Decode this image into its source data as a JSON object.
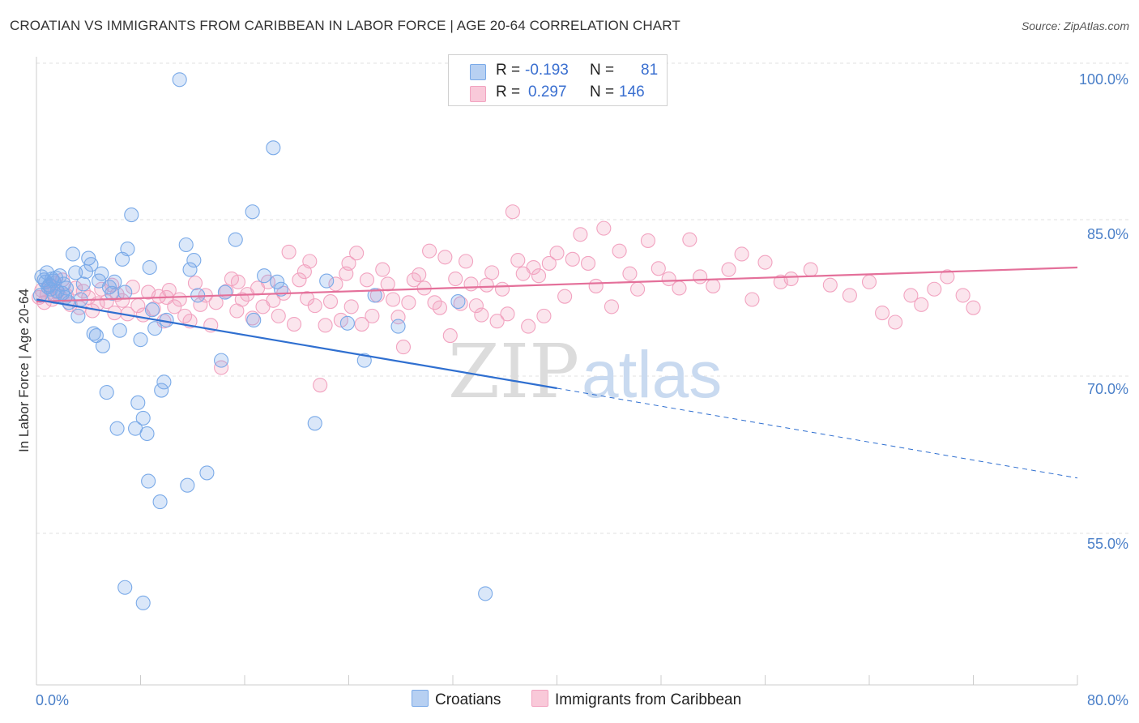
{
  "header": {
    "title": "CROATIAN VS IMMIGRANTS FROM CARIBBEAN IN LABOR FORCE | AGE 20-64 CORRELATION CHART",
    "source": "Source: ZipAtlas.com"
  },
  "legend": {
    "rows": [
      {
        "r_label": "R =",
        "r_value": "-0.193",
        "n_label": "N =",
        "n_value": "81"
      },
      {
        "r_label": "R =",
        "r_value": "0.297",
        "n_label": "N =",
        "n_value": "146"
      }
    ]
  },
  "bottom_legend": {
    "items": [
      {
        "label": "Croatians"
      },
      {
        "label": "Immigrants from Caribbean"
      }
    ]
  },
  "watermark": {
    "zip": "ZIP",
    "atlas": "atlas"
  },
  "chart_data": {
    "type": "scatter",
    "title": "CROATIAN VS IMMIGRANTS FROM CARIBBEAN IN LABOR FORCE | AGE 20-64 CORRELATION CHART",
    "xlabel": "",
    "ylabel": "In Labor Force | Age 20-64",
    "xlim": [
      0,
      80
    ],
    "ylim": [
      40,
      102
    ],
    "x_tick_labels": [
      "0.0%",
      "80.0%"
    ],
    "y_ticks": [
      {
        "value": 55,
        "label": "55.0%"
      },
      {
        "value": 70,
        "label": "70.0%"
      },
      {
        "value": 85,
        "label": "85.0%"
      },
      {
        "value": 100,
        "label": "100.0%"
      }
    ],
    "grid": "horizontal dashed",
    "colors": {
      "croatians": "#7aaae8",
      "caribbean": "#f2a3c0",
      "croatians_line": "#2f6fd0",
      "caribbean_line": "#e4709a",
      "tick_text": "#4a7fc8"
    },
    "series": [
      {
        "name": "Croatians",
        "trend": {
          "x0": 0,
          "y0": 78.6,
          "x1": 40,
          "y1": 70.0,
          "dashed_to_x": 80,
          "dashed_to_y": 61.3
        },
        "points": [
          [
            0.3,
            79.0
          ],
          [
            0.4,
            80.8
          ],
          [
            0.6,
            80.5
          ],
          [
            0.7,
            80.3
          ],
          [
            0.8,
            81.2
          ],
          [
            0.9,
            79.8
          ],
          [
            1.0,
            80.0
          ],
          [
            1.1,
            79.6
          ],
          [
            1.2,
            80.6
          ],
          [
            1.3,
            80.4
          ],
          [
            1.4,
            78.9
          ],
          [
            1.5,
            80.7
          ],
          [
            1.6,
            79.4
          ],
          [
            1.8,
            80.9
          ],
          [
            2.0,
            79.2
          ],
          [
            2.1,
            80.1
          ],
          [
            2.3,
            79.7
          ],
          [
            2.5,
            78.3
          ],
          [
            2.8,
            83.0
          ],
          [
            3.0,
            81.2
          ],
          [
            3.2,
            77.0
          ],
          [
            3.4,
            78.6
          ],
          [
            3.6,
            80.1
          ],
          [
            3.8,
            81.3
          ],
          [
            4.0,
            82.6
          ],
          [
            4.2,
            82.0
          ],
          [
            4.4,
            75.3
          ],
          [
            4.6,
            75.1
          ],
          [
            4.8,
            80.4
          ],
          [
            5.0,
            81.1
          ],
          [
            5.1,
            74.1
          ],
          [
            5.4,
            69.6
          ],
          [
            5.6,
            79.8
          ],
          [
            5.8,
            79.2
          ],
          [
            6.0,
            80.3
          ],
          [
            6.2,
            66.1
          ],
          [
            6.4,
            75.6
          ],
          [
            6.6,
            82.5
          ],
          [
            6.8,
            79.3
          ],
          [
            7.0,
            83.5
          ],
          [
            7.3,
            86.8
          ],
          [
            7.6,
            66.1
          ],
          [
            7.8,
            68.6
          ],
          [
            8.0,
            74.7
          ],
          [
            8.2,
            67.1
          ],
          [
            8.5,
            65.6
          ],
          [
            8.6,
            61.0
          ],
          [
            8.7,
            81.7
          ],
          [
            8.9,
            77.6
          ],
          [
            9.1,
            75.8
          ],
          [
            9.5,
            59.0
          ],
          [
            9.6,
            69.8
          ],
          [
            9.8,
            70.6
          ],
          [
            10.0,
            76.6
          ],
          [
            11.0,
            99.9
          ],
          [
            11.5,
            83.9
          ],
          [
            11.6,
            60.6
          ],
          [
            11.8,
            81.5
          ],
          [
            12.1,
            82.4
          ],
          [
            12.4,
            79.0
          ],
          [
            13.1,
            61.8
          ],
          [
            14.2,
            72.7
          ],
          [
            14.5,
            79.3
          ],
          [
            15.3,
            84.4
          ],
          [
            16.6,
            87.1
          ],
          [
            16.7,
            76.6
          ],
          [
            17.5,
            80.9
          ],
          [
            18.2,
            93.3
          ],
          [
            18.5,
            80.3
          ],
          [
            18.8,
            79.6
          ],
          [
            21.4,
            66.6
          ],
          [
            22.3,
            80.4
          ],
          [
            23.9,
            76.3
          ],
          [
            25.2,
            72.7
          ],
          [
            26.0,
            79.0
          ],
          [
            27.8,
            76.0
          ],
          [
            32.4,
            78.4
          ],
          [
            34.5,
            50.1
          ],
          [
            6.8,
            50.7
          ],
          [
            8.2,
            49.2
          ],
          [
            2.2,
            78.8
          ]
        ]
      },
      {
        "name": "Immigrants from Caribbean",
        "trend": {
          "x0": 0,
          "y0": 78.4,
          "x1": 80,
          "y1": 81.7
        },
        "points": [
          [
            0.2,
            78.8
          ],
          [
            0.4,
            79.5
          ],
          [
            0.6,
            78.3
          ],
          [
            0.8,
            79.1
          ],
          [
            1.0,
            79.9
          ],
          [
            1.2,
            78.6
          ],
          [
            1.4,
            80.2
          ],
          [
            1.6,
            79.3
          ],
          [
            1.8,
            78.9
          ],
          [
            2.0,
            80.5
          ],
          [
            2.3,
            79.0
          ],
          [
            2.6,
            78.1
          ],
          [
            3.0,
            79.7
          ],
          [
            3.3,
            77.8
          ],
          [
            3.6,
            79.4
          ],
          [
            4.0,
            78.8
          ],
          [
            4.3,
            77.5
          ],
          [
            4.7,
            78.2
          ],
          [
            5.0,
            79.6
          ],
          [
            5.4,
            78.4
          ],
          [
            5.8,
            80.0
          ],
          [
            6.2,
            79.1
          ],
          [
            6.6,
            78.5
          ],
          [
            7.0,
            77.2
          ],
          [
            7.4,
            79.8
          ],
          [
            7.8,
            78.0
          ],
          [
            8.2,
            77.1
          ],
          [
            8.6,
            79.3
          ],
          [
            9.0,
            77.7
          ],
          [
            9.4,
            78.9
          ],
          [
            9.8,
            76.5
          ],
          [
            10.2,
            79.5
          ],
          [
            10.6,
            77.9
          ],
          [
            11.0,
            78.6
          ],
          [
            11.4,
            77.0
          ],
          [
            11.8,
            76.5
          ],
          [
            12.2,
            80.2
          ],
          [
            12.6,
            78.1
          ],
          [
            13.0,
            79.0
          ],
          [
            13.4,
            76.1
          ],
          [
            13.8,
            78.3
          ],
          [
            14.2,
            72.0
          ],
          [
            14.6,
            79.4
          ],
          [
            15.0,
            80.6
          ],
          [
            15.4,
            77.5
          ],
          [
            15.8,
            78.6
          ],
          [
            16.2,
            79.1
          ],
          [
            16.6,
            76.8
          ],
          [
            17.0,
            79.7
          ],
          [
            17.4,
            77.9
          ],
          [
            17.8,
            80.3
          ],
          [
            18.2,
            78.5
          ],
          [
            18.6,
            77.0
          ],
          [
            19.0,
            79.2
          ],
          [
            19.4,
            83.2
          ],
          [
            19.8,
            76.2
          ],
          [
            20.2,
            80.5
          ],
          [
            20.6,
            81.3
          ],
          [
            21.0,
            82.3
          ],
          [
            21.4,
            78.0
          ],
          [
            21.8,
            70.3
          ],
          [
            22.2,
            76.1
          ],
          [
            22.6,
            78.4
          ],
          [
            23.0,
            80.1
          ],
          [
            23.4,
            76.6
          ],
          [
            23.8,
            81.1
          ],
          [
            24.2,
            77.9
          ],
          [
            24.6,
            83.1
          ],
          [
            25.0,
            76.2
          ],
          [
            25.4,
            80.5
          ],
          [
            25.8,
            77.0
          ],
          [
            26.2,
            79.0
          ],
          [
            26.6,
            81.5
          ],
          [
            27.0,
            80.1
          ],
          [
            27.4,
            78.6
          ],
          [
            27.8,
            76.9
          ],
          [
            28.2,
            74.0
          ],
          [
            28.6,
            78.3
          ],
          [
            29.0,
            80.5
          ],
          [
            29.4,
            81.0
          ],
          [
            29.8,
            79.7
          ],
          [
            30.2,
            83.3
          ],
          [
            30.6,
            78.3
          ],
          [
            31.0,
            77.8
          ],
          [
            31.4,
            82.7
          ],
          [
            31.8,
            75.1
          ],
          [
            32.2,
            80.6
          ],
          [
            32.6,
            78.2
          ],
          [
            33.0,
            82.3
          ],
          [
            33.4,
            80.1
          ],
          [
            33.8,
            78.0
          ],
          [
            34.2,
            77.1
          ],
          [
            34.6,
            80.0
          ],
          [
            35.0,
            81.2
          ],
          [
            35.4,
            76.5
          ],
          [
            35.8,
            79.6
          ],
          [
            36.2,
            77.2
          ],
          [
            36.6,
            87.1
          ],
          [
            37.0,
            82.4
          ],
          [
            37.4,
            81.1
          ],
          [
            37.8,
            76.0
          ],
          [
            38.2,
            81.7
          ],
          [
            38.6,
            80.9
          ],
          [
            39.0,
            77.0
          ],
          [
            39.4,
            82.1
          ],
          [
            40.0,
            83.1
          ],
          [
            40.6,
            78.9
          ],
          [
            41.2,
            82.5
          ],
          [
            41.8,
            84.9
          ],
          [
            42.4,
            82.1
          ],
          [
            43.0,
            79.9
          ],
          [
            43.6,
            85.5
          ],
          [
            44.2,
            77.9
          ],
          [
            44.8,
            83.3
          ],
          [
            45.6,
            81.1
          ],
          [
            46.2,
            79.6
          ],
          [
            47.0,
            84.3
          ],
          [
            47.8,
            81.6
          ],
          [
            48.6,
            80.6
          ],
          [
            49.4,
            79.7
          ],
          [
            50.2,
            84.4
          ],
          [
            51.0,
            80.8
          ],
          [
            52.0,
            79.9
          ],
          [
            53.2,
            81.5
          ],
          [
            54.2,
            83.0
          ],
          [
            55.0,
            78.6
          ],
          [
            56.0,
            82.2
          ],
          [
            57.2,
            80.3
          ],
          [
            58.0,
            80.6
          ],
          [
            59.5,
            81.5
          ],
          [
            61.0,
            80.0
          ],
          [
            62.5,
            79.0
          ],
          [
            64.0,
            80.3
          ],
          [
            65.0,
            77.3
          ],
          [
            66.0,
            76.4
          ],
          [
            67.2,
            79.0
          ],
          [
            68.0,
            78.1
          ],
          [
            69.0,
            79.6
          ],
          [
            70.0,
            80.8
          ],
          [
            71.2,
            79.0
          ],
          [
            72.0,
            77.8
          ],
          [
            24.0,
            82.1
          ],
          [
            20.8,
            78.7
          ],
          [
            15.5,
            80.3
          ],
          [
            10.0,
            78.8
          ],
          [
            6.0,
            77.3
          ]
        ]
      }
    ]
  }
}
